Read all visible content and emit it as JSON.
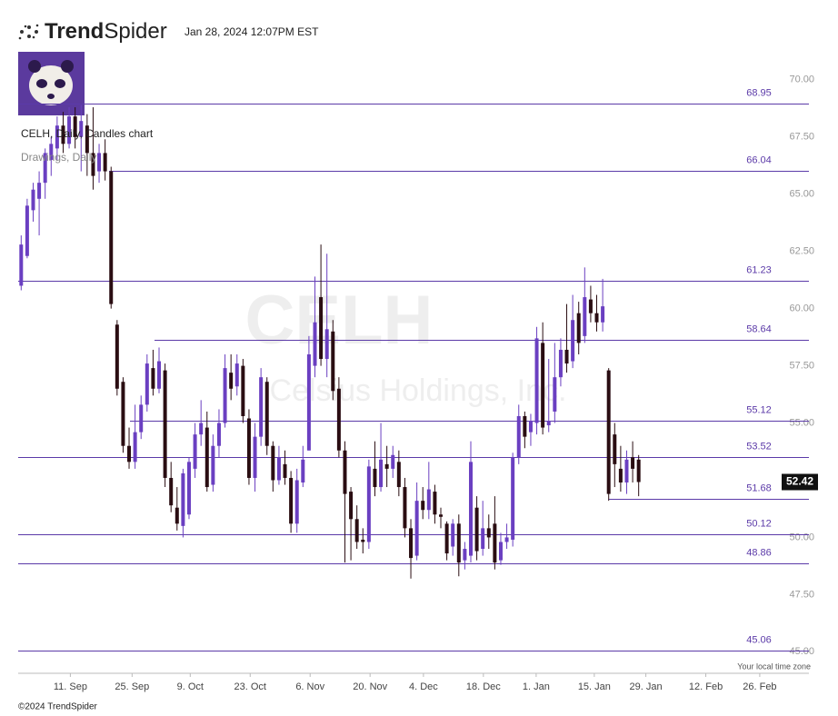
{
  "header": {
    "brand_bold": "Trend",
    "brand_light": "Spider",
    "timestamp": "Jan 28, 2024 12:07PM EST"
  },
  "footer": {
    "timezone_note": "Your local time zone",
    "copyright": "©2024 TrendSpider"
  },
  "chart_data": {
    "type": "candlestick",
    "title": "CELH, Daily, Candles chart",
    "subtitle": "Drawings, Daily",
    "watermark": "CELH",
    "watermark_name": "Celsius Holdings, Inc.",
    "up_color": "#6a3fc1",
    "down_color": "#2a0d12",
    "level_color": "#5b3aa8",
    "ylim": [
      44.1,
      71.9
    ],
    "xlim": [
      -0.5,
      131.4
    ],
    "yticks": [
      {
        "value": 45,
        "label": "45.00"
      },
      {
        "value": 47.5,
        "label": "47.50"
      },
      {
        "value": 50,
        "label": "50.00"
      },
      {
        "value": 52.5,
        "label": "52.50"
      },
      {
        "value": 55,
        "label": "55.00"
      },
      {
        "value": 57.5,
        "label": "57.50"
      },
      {
        "value": 60,
        "label": "60.00"
      },
      {
        "value": 62.5,
        "label": "62.50"
      },
      {
        "value": 65,
        "label": "65.00"
      },
      {
        "value": 67.5,
        "label": "67.50"
      },
      {
        "value": 70,
        "label": "70.00"
      }
    ],
    "xticks": [
      {
        "value": 8.2,
        "label": "11. Sep"
      },
      {
        "value": 18.5,
        "label": "25. Sep"
      },
      {
        "value": 28.2,
        "label": "9. Oct"
      },
      {
        "value": 38.2,
        "label": "23. Oct"
      },
      {
        "value": 48.2,
        "label": "6. Nov"
      },
      {
        "value": 58.2,
        "label": "20. Nov"
      },
      {
        "value": 67.1,
        "label": "4. Dec"
      },
      {
        "value": 77.1,
        "label": "18. Dec"
      },
      {
        "value": 85.9,
        "label": "1. Jan"
      },
      {
        "value": 95.6,
        "label": "15. Jan"
      },
      {
        "value": 104.2,
        "label": "29. Jan"
      },
      {
        "value": 114.2,
        "label": "12. Feb"
      },
      {
        "value": 123.2,
        "label": "26. Feb"
      }
    ],
    "levels": [
      68.95,
      66.04,
      61.23,
      58.64,
      55.12,
      53.52,
      51.68,
      50.12,
      48.86,
      45.06
    ],
    "open": [
      61,
      62.3,
      64.3,
      64.8,
      65.5,
      66.5,
      67,
      68,
      67.2,
      68.4,
      67.5,
      68,
      66.8,
      66,
      66.8,
      66,
      59.3,
      56.8,
      54,
      53.3,
      54.6,
      55.8,
      57.4,
      56.5,
      57.3,
      52.6,
      51.3,
      50.5,
      51,
      53,
      54.5,
      54.8,
      52.3,
      54,
      55,
      57.2,
      56.6,
      57.5,
      55.2,
      52.6,
      54.4,
      56.8,
      54,
      52.5,
      53.2,
      52.6,
      50.6,
      52.4,
      53.8,
      57.5,
      60.5,
      57.8,
      59,
      56.5,
      53.8,
      52,
      50.8,
      49.9,
      49.8,
      53,
      52.2,
      53.2,
      53,
      53.3,
      52.2,
      50.4,
      49.2,
      51.6,
      51.2,
      52,
      51,
      50.6,
      49.6,
      50.6,
      49,
      49.2,
      51.3,
      49.5,
      50.4,
      50.6,
      49,
      49.8,
      49.9,
      53.5,
      55.3,
      54.6,
      55,
      58.5,
      54.9,
      55.5,
      57,
      58.2,
      57.7,
      59.8,
      58.8,
      60.4,
      59.8,
      59.4,
      57.3,
      54.5,
      53,
      52.4,
      53.5,
      53.4
    ],
    "high": [
      63.2,
      64.8,
      65.5,
      66,
      67,
      67.5,
      68.4,
      68.6,
      68.8,
      68.8,
      68.9,
      68.5,
      68.8,
      67.2,
      67.4,
      66.2,
      59.5,
      57,
      54.8,
      55.8,
      56.2,
      58,
      58.2,
      58.3,
      57.6,
      53.3,
      52.2,
      53,
      53.5,
      55,
      56,
      55.5,
      54.5,
      55.6,
      58,
      58,
      58,
      57.8,
      55.6,
      55,
      57.4,
      57,
      54.2,
      54,
      53.8,
      52.9,
      53,
      54,
      58.8,
      61.4,
      62.8,
      62.4,
      59.5,
      57,
      54.2,
      52.2,
      51.4,
      50.4,
      53.4,
      54.2,
      55,
      54,
      54,
      53.8,
      52.6,
      50.8,
      52.4,
      52.2,
      53.3,
      52.3,
      51.3,
      50.7,
      50.8,
      51,
      49.8,
      54.2,
      51.8,
      51.6,
      51,
      51.8,
      50.2,
      50.6,
      53.7,
      55.8,
      55.5,
      55.4,
      59.2,
      59.4,
      57.8,
      58.5,
      58.7,
      60.2,
      60.6,
      60.3,
      61.8,
      61,
      60.6,
      61.3,
      57.4,
      55,
      54,
      53.8,
      54.2,
      53.6
    ],
    "low": [
      60.8,
      62.2,
      63.8,
      63.2,
      64.8,
      65.8,
      66.5,
      66.8,
      67,
      67,
      66,
      65.8,
      65.2,
      65.5,
      65.6,
      60,
      56.2,
      53.7,
      53,
      53,
      54.3,
      55.5,
      56.2,
      56.3,
      52.2,
      51.1,
      50.3,
      50,
      50.8,
      52.6,
      54,
      52,
      52,
      53.5,
      54.8,
      56,
      56.2,
      55,
      52.3,
      52,
      54,
      53.6,
      52,
      52.3,
      52.3,
      50.2,
      50.2,
      52.2,
      53.8,
      57,
      57.5,
      57,
      56,
      53.5,
      48.9,
      49,
      49.5,
      49.3,
      49.5,
      51.8,
      52,
      52.2,
      52.6,
      51.8,
      50,
      48.2,
      49,
      50.8,
      50.8,
      50.6,
      50.4,
      49,
      49.2,
      48.3,
      48.6,
      48.9,
      49,
      49.2,
      49.5,
      48.6,
      48.8,
      49.5,
      49.6,
      53.2,
      53.9,
      54,
      54.5,
      54.5,
      54.6,
      55,
      56.6,
      57.2,
      57.4,
      58,
      58.5,
      59.4,
      59,
      59,
      51.6,
      52.2,
      52,
      51.9,
      52.4,
      51.8
    ],
    "close": [
      62.8,
      64.5,
      65.2,
      65.5,
      66.8,
      67.2,
      68,
      67.2,
      68.4,
      67.5,
      68.2,
      66.8,
      65.8,
      66.8,
      66,
      60.2,
      56.5,
      54,
      53.3,
      54.6,
      55.8,
      57.6,
      56.5,
      57.7,
      52.6,
      51.4,
      50.6,
      52.8,
      53.3,
      54.5,
      55,
      52.2,
      54,
      55,
      57.4,
      56.5,
      57.6,
      55.3,
      52.6,
      54.4,
      57,
      54,
      52.5,
      53.5,
      52.6,
      50.6,
      52.5,
      53.4,
      58,
      59.4,
      57.8,
      59.1,
      56.4,
      53.8,
      51.9,
      50.8,
      49.8,
      49.8,
      53.1,
      52.2,
      53.4,
      53,
      53.6,
      52.2,
      50.4,
      49.1,
      51.6,
      51.2,
      52.1,
      51,
      50.9,
      49.3,
      50.6,
      48.9,
      49.5,
      53.3,
      49.4,
      50.4,
      50,
      48.9,
      49.8,
      50,
      53.5,
      55.3,
      54.4,
      55.1,
      58.7,
      54.8,
      55.1,
      57,
      58.2,
      57.6,
      59.5,
      58.5,
      60.5,
      59.8,
      59.4,
      60.1,
      51.9,
      53.2,
      52.4,
      53.4,
      53,
      52.42
    ]
  }
}
